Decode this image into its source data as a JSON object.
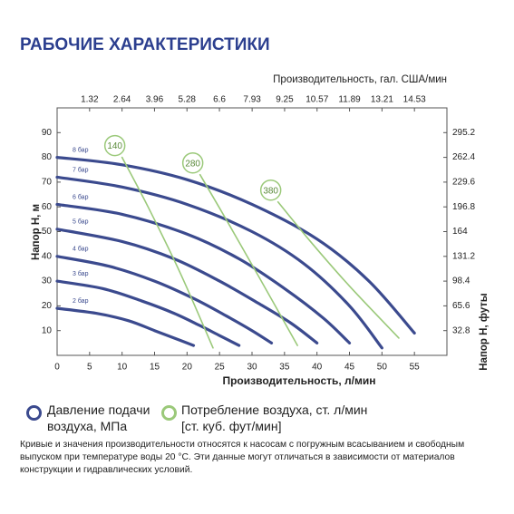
{
  "title": "РАБОЧИЕ ХАРАКТЕРИСТИКИ",
  "chart_data": {
    "type": "line",
    "x_label": "Производительность, л/мин",
    "x2_label": "Производительность, гал. США/мин",
    "y_label": "Напор H, м",
    "y2_label": "Напор H, футы",
    "xlim": [
      0,
      60
    ],
    "xticks": [
      0,
      5,
      10,
      15,
      20,
      25,
      30,
      35,
      40,
      45,
      50,
      55
    ],
    "x2lim": [
      0,
      15.85
    ],
    "x2ticks": [
      1.32,
      2.64,
      3.96,
      5.28,
      6.6,
      7.93,
      9.25,
      10.57,
      11.89,
      13.21,
      14.53
    ],
    "ylim": [
      0,
      100
    ],
    "yticks": [
      10,
      20,
      30,
      40,
      50,
      60,
      70,
      80,
      90
    ],
    "y2lim": [
      0,
      328
    ],
    "y2ticks": [
      32.8,
      65.6,
      98.4,
      131.2,
      164,
      196.8,
      229.6,
      262.4,
      295.2
    ],
    "series": [
      {
        "name": "8 бар",
        "color": "#3b4a8e",
        "x": [
          0,
          10,
          20,
          30,
          40,
          48,
          55
        ],
        "values": [
          80,
          77,
          71,
          61,
          47,
          30,
          9
        ]
      },
      {
        "name": "7 бар",
        "color": "#3b4a8e",
        "x": [
          0,
          10,
          20,
          30,
          38,
          45,
          50
        ],
        "values": [
          72,
          68,
          61,
          50,
          37,
          20,
          3
        ]
      },
      {
        "name": "6 бар",
        "color": "#3b4a8e",
        "x": [
          0,
          10,
          20,
          28,
          35,
          41,
          45
        ],
        "values": [
          61,
          57,
          49,
          39,
          27,
          15,
          5
        ]
      },
      {
        "name": "5 бар",
        "color": "#3b4a8e",
        "x": [
          0,
          10,
          18,
          25,
          31,
          36,
          40
        ],
        "values": [
          51,
          46,
          39,
          30,
          21,
          13,
          5
        ]
      },
      {
        "name": "4 бар",
        "color": "#3b4a8e",
        "x": [
          0,
          8,
          15,
          21,
          26,
          30,
          33
        ],
        "values": [
          40,
          36,
          30,
          23,
          16,
          10,
          5
        ]
      },
      {
        "name": "3 бар",
        "color": "#3b4a8e",
        "x": [
          0,
          7,
          13,
          18,
          22,
          25,
          28
        ],
        "values": [
          30,
          27,
          22,
          17,
          12,
          8,
          4
        ]
      },
      {
        "name": "2 бар",
        "color": "#3b4a8e",
        "x": [
          0,
          6,
          11,
          15,
          18,
          21
        ],
        "values": [
          19,
          17,
          14,
          10,
          7,
          4
        ]
      },
      {
        "name": "140",
        "color": "#9bc97a",
        "x": [
          10,
          14,
          19,
          24
        ],
        "values": [
          80,
          60,
          33,
          3
        ]
      },
      {
        "name": "280",
        "color": "#9bc97a",
        "x": [
          22,
          26,
          31,
          37
        ],
        "values": [
          73,
          55,
          32,
          4
        ]
      },
      {
        "name": "380",
        "color": "#9bc97a",
        "x": [
          34,
          39,
          45,
          52.6
        ],
        "values": [
          62,
          46,
          28,
          7
        ]
      }
    ]
  },
  "legend": [
    {
      "label": "Давление подачи воздуха, МПа",
      "color": "#3b4a8e"
    },
    {
      "label": "Потребление воздуха, ст. л/мин [ст. куб. фут/мин]",
      "color": "#9bc97a"
    }
  ],
  "note": "Кривые и значения производительности относятся к насосам с погружным всасыванием и свободным выпуском при температуре воды 20 °C. Эти данные могут отличаться в зависимости от материалов конструкции и гидравлических условий."
}
